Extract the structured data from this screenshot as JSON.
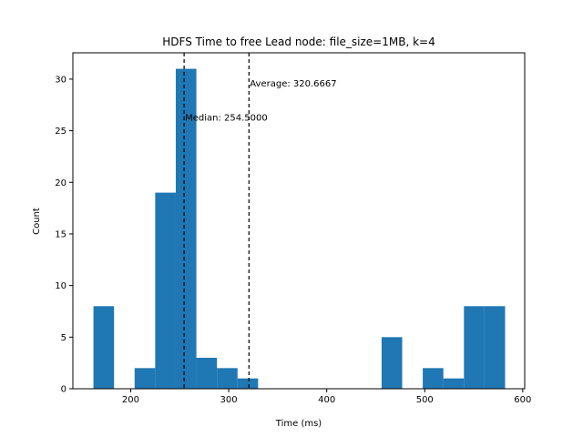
{
  "chart_data": {
    "type": "bar",
    "title": "HDFS Time to free Lead node: file_size=1MB, k=4",
    "xlabel": "Time (ms)",
    "ylabel": "Count",
    "xlim": [
      141,
      602
    ],
    "ylim": [
      0,
      32.55
    ],
    "xticks": [
      200,
      300,
      400,
      500,
      600
    ],
    "yticks": [
      0,
      5,
      10,
      15,
      20,
      25,
      30
    ],
    "bar_color": "#1f77b4",
    "bins": [
      {
        "x0": 162,
        "x1": 183,
        "count": 8
      },
      {
        "x0": 183,
        "x1": 204,
        "count": 0
      },
      {
        "x0": 204,
        "x1": 225,
        "count": 2
      },
      {
        "x0": 225,
        "x1": 246,
        "count": 19
      },
      {
        "x0": 246,
        "x1": 267,
        "count": 31
      },
      {
        "x0": 267,
        "x1": 288,
        "count": 3
      },
      {
        "x0": 288,
        "x1": 309,
        "count": 2
      },
      {
        "x0": 309,
        "x1": 330,
        "count": 1
      },
      {
        "x0": 330,
        "x1": 351,
        "count": 0
      },
      {
        "x0": 351,
        "x1": 372,
        "count": 0
      },
      {
        "x0": 372,
        "x1": 393,
        "count": 0
      },
      {
        "x0": 393,
        "x1": 414,
        "count": 0
      },
      {
        "x0": 414,
        "x1": 435,
        "count": 0
      },
      {
        "x0": 435,
        "x1": 456,
        "count": 0
      },
      {
        "x0": 456,
        "x1": 477,
        "count": 5
      },
      {
        "x0": 477,
        "x1": 498,
        "count": 0
      },
      {
        "x0": 498,
        "x1": 519,
        "count": 2
      },
      {
        "x0": 519,
        "x1": 540,
        "count": 1
      },
      {
        "x0": 540,
        "x1": 561,
        "count": 8
      },
      {
        "x0": 561,
        "x1": 582,
        "count": 8
      }
    ],
    "lines": [
      {
        "value": 254.5,
        "label": "Median: 254.5000",
        "label_y": 26.0
      },
      {
        "value": 320.6667,
        "label": "Average: 320.6667",
        "label_y": 29.3
      }
    ],
    "grid": false,
    "legend": "none"
  }
}
